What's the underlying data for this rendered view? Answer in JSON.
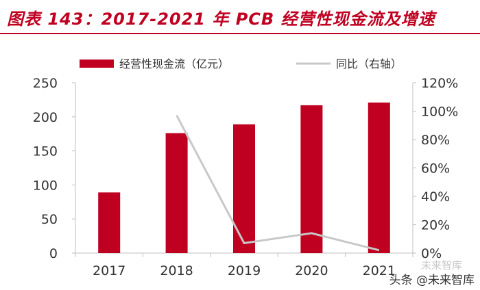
{
  "title": "图表 143：2017-2021 年 PCB 经营性现金流及增速",
  "watermark": {
    "main": "头条 @未来智库",
    "faint": "未来智库"
  },
  "colors": {
    "bar": "#c00020",
    "line": "#c8c8c8",
    "title": "#c00020",
    "axis": "#bfbfbf",
    "text": "#333333"
  },
  "chart_data": {
    "type": "bar",
    "categories": [
      "2017",
      "2018",
      "2019",
      "2020",
      "2021"
    ],
    "series": [
      {
        "name": "经营性现金流（亿元）",
        "type": "bar",
        "axis": "left",
        "values": [
          89,
          176,
          189,
          217,
          221
        ]
      },
      {
        "name": "同比（右轴）",
        "type": "line",
        "axis": "right",
        "values": [
          null,
          0.97,
          0.07,
          0.14,
          0.02
        ]
      }
    ],
    "ylim": [
      0,
      250
    ],
    "yticks": [
      "0",
      "50",
      "100",
      "150",
      "200",
      "250"
    ],
    "y2lim": [
      0,
      1.2
    ],
    "y2ticks": [
      "0%",
      "20%",
      "40%",
      "60%",
      "80%",
      "100%",
      "120%"
    ],
    "legend_position": "top",
    "grid": false
  }
}
